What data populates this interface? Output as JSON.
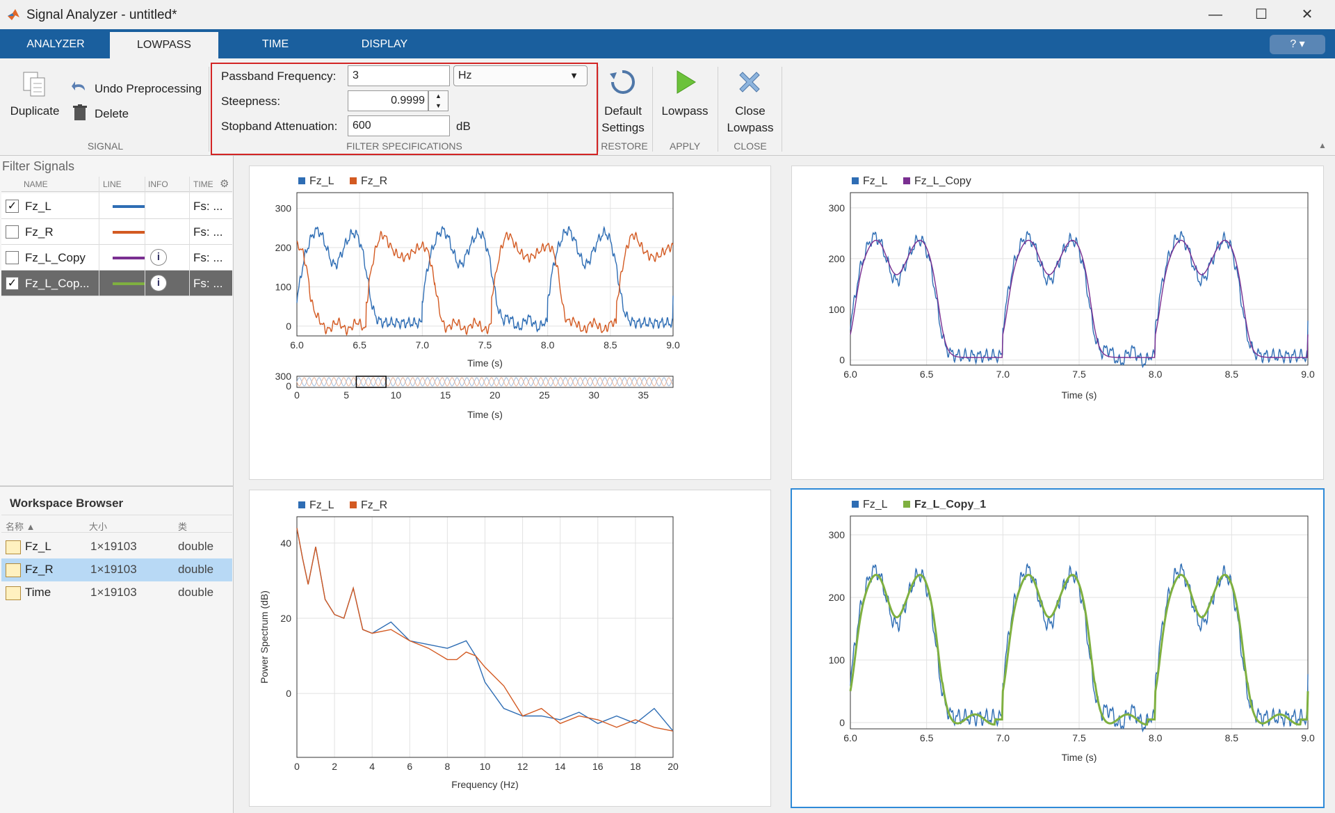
{
  "window": {
    "title": "Signal Analyzer - untitled*"
  },
  "tabs": [
    "ANALYZER",
    "LOWPASS",
    "TIME",
    "DISPLAY"
  ],
  "toolstrip": {
    "signal": {
      "duplicate": "Duplicate",
      "undo": "Undo Preprocessing",
      "delete": "Delete",
      "section": "SIGNAL"
    },
    "filter": {
      "passband_label": "Passband Frequency:",
      "passband_value": "3",
      "passband_unit": "Hz",
      "steepness_label": "Steepness:",
      "steepness_value": "0.9999",
      "stopband_label": "Stopband Attenuation:",
      "stopband_value": "600",
      "stopband_unit": "dB",
      "section": "FILTER SPECIFICATIONS"
    },
    "restore": {
      "line1": "Default",
      "line2": "Settings",
      "section": "RESTORE"
    },
    "apply": {
      "label": "Lowpass",
      "section": "APPLY"
    },
    "close": {
      "line1": "Close",
      "line2": "Lowpass",
      "section": "CLOSE"
    }
  },
  "signals_panel": {
    "title": "Filter Signals",
    "headers": {
      "name": "NAME",
      "line": "LINE",
      "info": "INFO",
      "time": "TIME"
    },
    "rows": [
      {
        "name": "Fz_L",
        "fs": "Fs: ...",
        "checked": "✓",
        "color": "#2e6db4"
      },
      {
        "name": "Fz_R",
        "fs": "Fs: ...",
        "checked": "",
        "color": "#d35a22"
      },
      {
        "name": "Fz_L_Copy",
        "fs": "Fs: ...",
        "checked": "",
        "color": "#7a2f91",
        "info": "i"
      },
      {
        "name": "Fz_L_Cop...",
        "fs": "Fs: ...",
        "checked": "✓",
        "color": "#7fb040",
        "info": "i"
      }
    ]
  },
  "workspace": {
    "title": "Workspace Browser",
    "headers": {
      "name": "名称 ▲",
      "size": "大小",
      "class": "类"
    },
    "rows": [
      {
        "name": "Fz_L",
        "size": "1×19103",
        "class": "double"
      },
      {
        "name": "Fz_R",
        "size": "1×19103",
        "class": "double"
      },
      {
        "name": "Time",
        "size": "1×19103",
        "class": "double"
      }
    ]
  },
  "plots": {
    "p1": {
      "legend": [
        "Fz_L",
        "Fz_R"
      ],
      "xlabel": "Time (s)",
      "pan_xlabel": "Time (s)"
    },
    "p2": {
      "legend": [
        "Fz_L",
        "Fz_L_Copy"
      ],
      "xlabel": "Time (s)"
    },
    "p3": {
      "legend": [
        "Fz_L",
        "Fz_R"
      ],
      "xlabel": "Frequency (Hz)",
      "ylabel": "Power Spectrum (dB)"
    },
    "p4": {
      "legend": [
        "Fz_L",
        "Fz_L_Copy_1"
      ],
      "xlabel": "Time (s)"
    }
  },
  "colors": {
    "blue": "#2e6db4",
    "orange": "#d35a22",
    "purple": "#7a2f91",
    "green": "#7fb040",
    "accent": "#1a5f9e"
  },
  "chart_data": [
    {
      "type": "line",
      "x_range": [
        6.0,
        9.0
      ],
      "ylim": [
        -25,
        340
      ],
      "xlabel": "Time (s)",
      "x_ticks": [
        "6.0",
        "6.5",
        "7.0",
        "7.5",
        "8.0",
        "8.5",
        "9.0"
      ],
      "y_ticks": [
        "0",
        "100",
        "200",
        "300"
      ],
      "series": [
        {
          "name": "Fz_L"
        },
        {
          "name": "Fz_R"
        }
      ],
      "panner": {
        "x_range": [
          0,
          38
        ],
        "x_ticks": [
          "0",
          "5",
          "10",
          "15",
          "20",
          "25",
          "30",
          "35"
        ],
        "y_ticks": [
          "0",
          "300"
        ],
        "xlabel": "Time (s)"
      }
    },
    {
      "type": "line",
      "x_range": [
        6.0,
        9.0
      ],
      "ylim": [
        -10,
        330
      ],
      "xlabel": "Time (s)",
      "x_ticks": [
        "6.0",
        "6.5",
        "7.0",
        "7.5",
        "8.0",
        "8.5",
        "9.0"
      ],
      "y_ticks": [
        "0",
        "100",
        "200",
        "300"
      ],
      "series": [
        {
          "name": "Fz_L"
        },
        {
          "name": "Fz_L_Copy"
        }
      ]
    },
    {
      "type": "line",
      "x_range": [
        0,
        20
      ],
      "ylim": [
        -17,
        47
      ],
      "xlabel": "Frequency (Hz)",
      "ylabel": "Power Spectrum (dB)",
      "x_ticks": [
        "0",
        "2",
        "4",
        "6",
        "8",
        "10",
        "12",
        "14",
        "16",
        "18",
        "20"
      ],
      "y_ticks": [
        "0",
        "20",
        "40"
      ],
      "series": [
        {
          "name": "Fz_L",
          "x": [
            0,
            0.3,
            0.6,
            1.0,
            1.5,
            2.0,
            2.5,
            3.0,
            3.5,
            4.0,
            5.0,
            6.0,
            7.0,
            8.0,
            8.5,
            9.0,
            9.5,
            10.0,
            11.0,
            12.0,
            13.0,
            14.0,
            15.0,
            16.0,
            17.0,
            18.0,
            19.0,
            20.0
          ],
          "values": [
            44,
            36,
            29,
            39,
            25,
            21,
            20,
            28,
            17,
            16,
            19,
            14,
            13,
            12,
            13,
            14,
            10,
            3,
            -4,
            -6,
            -6,
            -7,
            -5,
            -8,
            -6,
            -8,
            -4,
            -10
          ]
        },
        {
          "name": "Fz_R",
          "x": [
            0,
            0.3,
            0.6,
            1.0,
            1.5,
            2.0,
            2.5,
            3.0,
            3.5,
            4.0,
            5.0,
            6.0,
            7.0,
            8.0,
            8.5,
            9.0,
            9.5,
            10.0,
            11.0,
            12.0,
            13.0,
            14.0,
            15.0,
            16.0,
            17.0,
            18.0,
            19.0,
            20.0
          ],
          "values": [
            44,
            36,
            29,
            39,
            25,
            21,
            20,
            28,
            17,
            16,
            17,
            14,
            12,
            9,
            9,
            11,
            10,
            7,
            2,
            -6,
            -4,
            -8,
            -6,
            -7,
            -9,
            -7,
            -9,
            -10
          ]
        }
      ]
    },
    {
      "type": "line",
      "x_range": [
        6.0,
        9.0
      ],
      "ylim": [
        -10,
        330
      ],
      "xlabel": "Time (s)",
      "x_ticks": [
        "6.0",
        "6.5",
        "7.0",
        "7.5",
        "8.0",
        "8.5",
        "9.0"
      ],
      "y_ticks": [
        "0",
        "100",
        "200",
        "300"
      ],
      "series": [
        {
          "name": "Fz_L"
        },
        {
          "name": "Fz_L_Copy_1"
        }
      ]
    }
  ]
}
